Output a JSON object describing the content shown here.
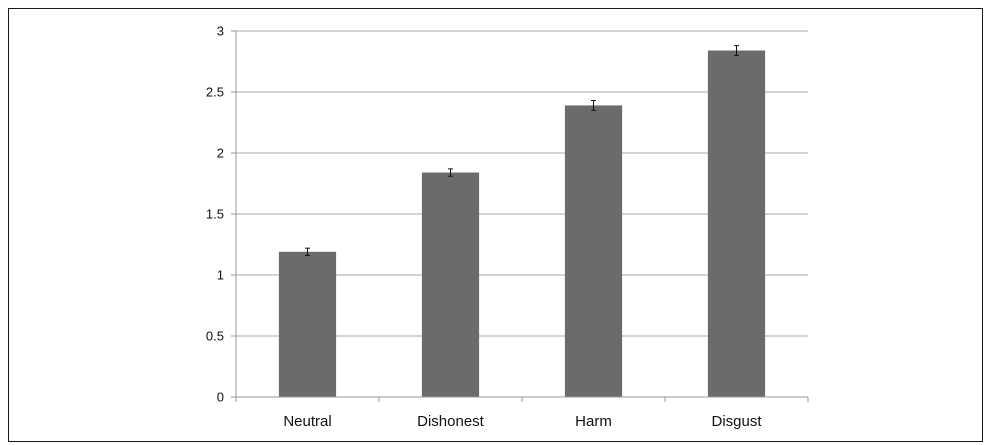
{
  "chart_data": {
    "type": "bar",
    "categories": [
      "Neutral",
      "Dishonest",
      "Harm",
      "Disgust"
    ],
    "values": [
      1.19,
      1.84,
      2.39,
      2.84
    ],
    "error": [
      0.03,
      0.03,
      0.04,
      0.04
    ],
    "title": "",
    "xlabel": "",
    "ylabel": "",
    "ylim": [
      0,
      3
    ],
    "yticks": [
      "0",
      "0.5",
      "1",
      "1.5",
      "2",
      "2.5",
      "3"
    ],
    "grid": true,
    "bar_color": "#6b6b6b",
    "grid_color": "#a8a8a8",
    "axis_color": "#9a9a9a"
  }
}
